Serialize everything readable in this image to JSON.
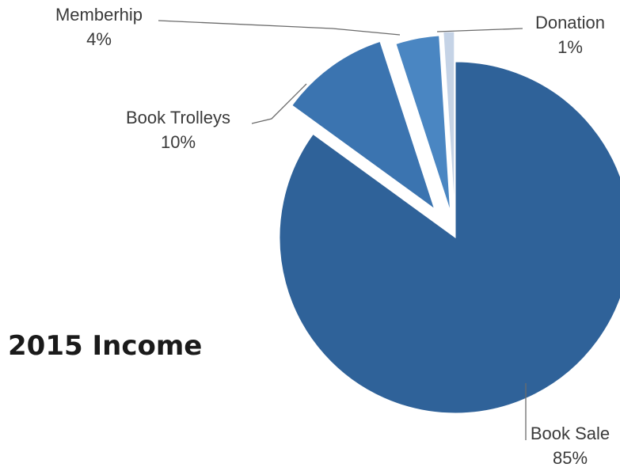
{
  "chart_data": {
    "type": "pie",
    "title": "2015 Income",
    "slices": [
      {
        "name": "Book Sale",
        "value": 85,
        "label": "85%",
        "color": "#2f6299"
      },
      {
        "name": "Book Trolleys",
        "value": 10,
        "label": "10%",
        "color": "#3b74b0"
      },
      {
        "name": "Memberhip",
        "value": 4,
        "label": "4%",
        "color": "#4a86c2"
      },
      {
        "name": "Donation",
        "value": 1,
        "label": "1%",
        "color": "#c5d3e6"
      }
    ],
    "exploded": true,
    "legend": "none"
  }
}
